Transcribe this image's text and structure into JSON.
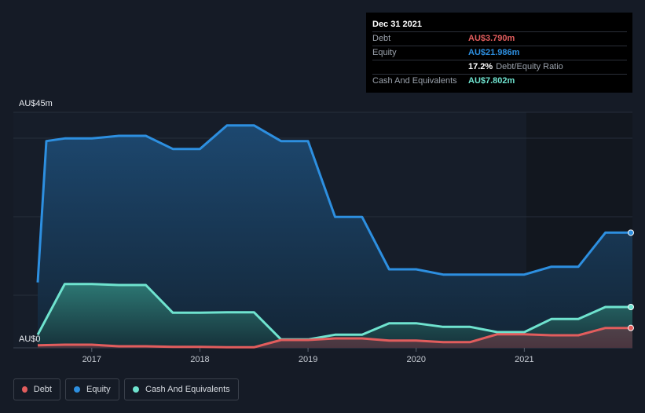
{
  "tooltip": {
    "date": "Dec 31 2021",
    "debt_label": "Debt",
    "debt_value": "AU$3.790m",
    "equity_label": "Equity",
    "equity_value": "AU$21.986m",
    "ratio_value": "17.2%",
    "ratio_label": "Debt/Equity Ratio",
    "cash_label": "Cash And Equivalents",
    "cash_value": "AU$7.802m"
  },
  "legend": {
    "debt": "Debt",
    "equity": "Equity",
    "cash": "Cash And Equivalents"
  },
  "colors": {
    "debt": "#e25d5d",
    "equity": "#2d8fe0",
    "cash": "#6fe3cf",
    "background": "#151b26"
  },
  "chart_data": {
    "type": "area",
    "y_unit": "AU$m",
    "ylim": [
      0,
      45
    ],
    "y_tick_labels": [
      {
        "value": 45,
        "label": "AU$45m"
      },
      {
        "value": 0,
        "label": "AU$0"
      }
    ],
    "x_tick_labels": [
      {
        "value": 2017.0,
        "label": "2017"
      },
      {
        "value": 2018.0,
        "label": "2018"
      },
      {
        "value": 2019.0,
        "label": "2019"
      },
      {
        "value": 2020.0,
        "label": "2020"
      },
      {
        "value": 2021.0,
        "label": "2021"
      }
    ],
    "xlim": [
      2016.5,
      2022.0
    ],
    "grid": true,
    "series": [
      {
        "name": "Equity",
        "points": [
          [
            2016.5,
            12.5
          ],
          [
            2016.58,
            39.5
          ],
          [
            2016.75,
            40.0
          ],
          [
            2017.0,
            40.0
          ],
          [
            2017.25,
            40.5
          ],
          [
            2017.5,
            40.5
          ],
          [
            2017.75,
            38.0
          ],
          [
            2018.0,
            38.0
          ],
          [
            2018.25,
            42.5
          ],
          [
            2018.5,
            42.5
          ],
          [
            2018.75,
            39.5
          ],
          [
            2019.0,
            39.5
          ],
          [
            2019.25,
            25.0
          ],
          [
            2019.5,
            25.0
          ],
          [
            2019.75,
            15.0
          ],
          [
            2020.0,
            15.0
          ],
          [
            2020.25,
            14.0
          ],
          [
            2020.5,
            14.0
          ],
          [
            2020.75,
            14.0
          ],
          [
            2021.0,
            14.0
          ],
          [
            2021.25,
            15.5
          ],
          [
            2021.5,
            15.5
          ],
          [
            2021.75,
            22.0
          ],
          [
            2022.0,
            22.0
          ]
        ]
      },
      {
        "name": "Cash And Equivalents",
        "points": [
          [
            2016.5,
            2.5
          ],
          [
            2016.75,
            12.2
          ],
          [
            2017.0,
            12.2
          ],
          [
            2017.25,
            12.0
          ],
          [
            2017.5,
            12.0
          ],
          [
            2017.75,
            6.7
          ],
          [
            2018.0,
            6.7
          ],
          [
            2018.25,
            6.8
          ],
          [
            2018.5,
            6.8
          ],
          [
            2018.75,
            1.6
          ],
          [
            2019.0,
            1.6
          ],
          [
            2019.25,
            2.5
          ],
          [
            2019.5,
            2.5
          ],
          [
            2019.75,
            4.7
          ],
          [
            2020.0,
            4.7
          ],
          [
            2020.25,
            4.0
          ],
          [
            2020.5,
            4.0
          ],
          [
            2020.75,
            3.0
          ],
          [
            2021.0,
            3.0
          ],
          [
            2021.25,
            5.5
          ],
          [
            2021.5,
            5.5
          ],
          [
            2021.75,
            7.8
          ],
          [
            2022.0,
            7.8
          ]
        ]
      },
      {
        "name": "Debt",
        "points": [
          [
            2016.5,
            0.5
          ],
          [
            2016.75,
            0.6
          ],
          [
            2017.0,
            0.6
          ],
          [
            2017.25,
            0.3
          ],
          [
            2017.5,
            0.3
          ],
          [
            2017.75,
            0.2
          ],
          [
            2018.0,
            0.2
          ],
          [
            2018.25,
            0.1
          ],
          [
            2018.5,
            0.1
          ],
          [
            2018.75,
            1.5
          ],
          [
            2019.0,
            1.5
          ],
          [
            2019.25,
            1.8
          ],
          [
            2019.5,
            1.8
          ],
          [
            2019.75,
            1.4
          ],
          [
            2020.0,
            1.4
          ],
          [
            2020.25,
            1.1
          ],
          [
            2020.5,
            1.1
          ],
          [
            2020.75,
            2.6
          ],
          [
            2021.0,
            2.6
          ],
          [
            2021.25,
            2.4
          ],
          [
            2021.5,
            2.4
          ],
          [
            2021.75,
            3.8
          ],
          [
            2022.0,
            3.8
          ]
        ]
      }
    ]
  }
}
